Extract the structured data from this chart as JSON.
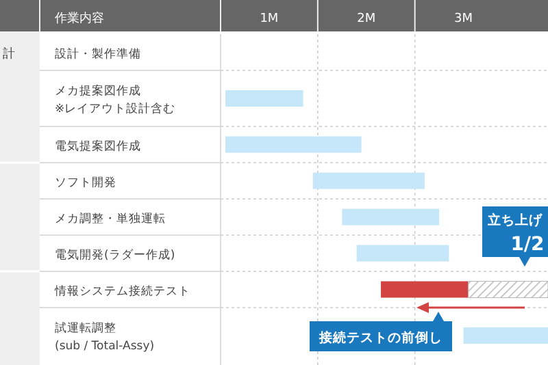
{
  "chart_data": {
    "type": "bar",
    "orientation": "horizontal",
    "ylabel": "作業内容",
    "categories": [
      "設計・製作準備",
      "メカ提案図作成\n※レイアウト設計含む",
      "電気提案図作成",
      "ソフト開発",
      "メカ調整・単独運転",
      "電気開発(ラダー作成)",
      "情報システム接続テスト",
      "試運転調整\n(sub / Total-Assy)"
    ],
    "series": [
      {
        "color": "#c6e7f9",
        "base": [
          null,
          0.05,
          0.05,
          0.95,
          1.25,
          1.4,
          null,
          2.5
        ],
        "values": [
          null,
          0.8,
          1.4,
          1.15,
          1.0,
          0.95,
          null,
          0.87
        ]
      },
      {
        "color": "#d24343",
        "base": [
          null,
          null,
          null,
          null,
          null,
          null,
          1.65,
          null
        ],
        "values": [
          null,
          null,
          null,
          null,
          null,
          null,
          0.9,
          null
        ]
      },
      {
        "color": "#b8b8b8",
        "base": [
          null,
          null,
          null,
          null,
          null,
          null,
          2.55,
          null
        ],
        "values": [
          null,
          null,
          null,
          null,
          null,
          null,
          0.82,
          null
        ]
      }
    ],
    "xlim": [
      0,
      3.37
    ],
    "xticks": [
      {
        "value": 0.5,
        "label": "1M"
      },
      {
        "value": 1,
        "label": null
      },
      {
        "value": 1.5,
        "label": "2M"
      },
      {
        "value": 2,
        "label": null
      },
      {
        "value": 2.5,
        "label": "3M"
      }
    ],
    "grid": "x",
    "annotations": [
      "計",
      "立ち上げ",
      "1/2",
      "接続テストの前倒し"
    ]
  }
}
